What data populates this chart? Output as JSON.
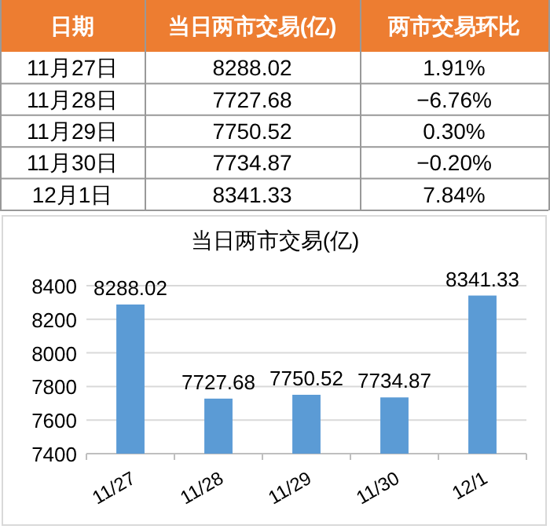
{
  "chart_data": [
    {
      "type": "other",
      "annotations": [
        "日期",
        "当日两市交易(亿)",
        "两市交易环比",
        "11月27日",
        "8288.02",
        "1.91%",
        "11月28日",
        "7727.68",
        "−6.76%",
        "11月29日",
        "7750.52",
        "0.30%",
        "11月30日",
        "7734.87",
        "−0.20%",
        "12月1日",
        "8341.33",
        "7.84%"
      ]
    },
    {
      "type": "bar",
      "title": "当日两市交易(亿)",
      "categories": [
        "11/27",
        "11/28",
        "11/29",
        "11/30",
        "12/1"
      ],
      "values": [
        8288.02,
        7727.68,
        7750.52,
        7734.87,
        8341.33
      ],
      "color": "#5b9bd5",
      "ylim": [
        7400,
        8400
      ],
      "yticks": [
        7400,
        7600,
        7800,
        8000,
        8200,
        8400
      ],
      "grid": "y",
      "data_labels": true
    }
  ]
}
